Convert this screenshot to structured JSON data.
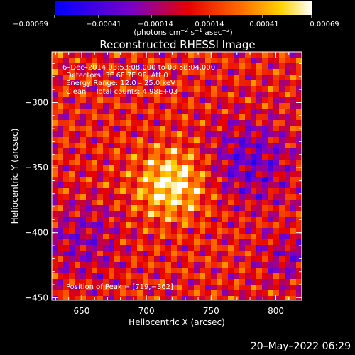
{
  "window": {
    "timestamp": "20–May–2022 06:29"
  },
  "colorbar": {
    "ticks": [
      "−0.00069",
      "−0.00041",
      "−0.00014",
      "0.00014",
      "0.00041",
      "0.00069"
    ],
    "unit_prefix": "(photons cm",
    "unit_exp1": "−2",
    "unit_mid1": " s",
    "unit_exp2": "−1",
    "unit_mid2": " asec",
    "unit_exp3": "−2",
    "unit_suffix": ")",
    "range": [
      -0.00069,
      0.00069
    ]
  },
  "chart_data": {
    "type": "heatmap",
    "title": "Reconstructed RHESSI Image",
    "xlabel": "Heliocentric X (arcsec)",
    "ylabel": "Heliocentric Y (arcsec)",
    "xlim": [
      627,
      820
    ],
    "ylim": [
      -452,
      -261
    ],
    "xticks": [
      650,
      700,
      750,
      800
    ],
    "yticks": [
      -300,
      -350,
      -400,
      -450
    ],
    "xtick_labels": [
      "650",
      "700",
      "750",
      "800"
    ],
    "ytick_labels": [
      "−300",
      "−350",
      "−400",
      "−450"
    ],
    "colormap": "blue-purple-red-orange-yellow-white",
    "peak_position": [
      719,
      -362
    ],
    "annotations": [
      "6–Dec–2014 03:53:08.000 to 03:58:04.000",
      "Detectors: 3F 6F 7F 9F, Att 0",
      "Energy Range: 12.0 – 25.0 keV",
      "Clean    Total counts: 4.98E+03",
      "Position of Peak = [719,−362]"
    ]
  }
}
